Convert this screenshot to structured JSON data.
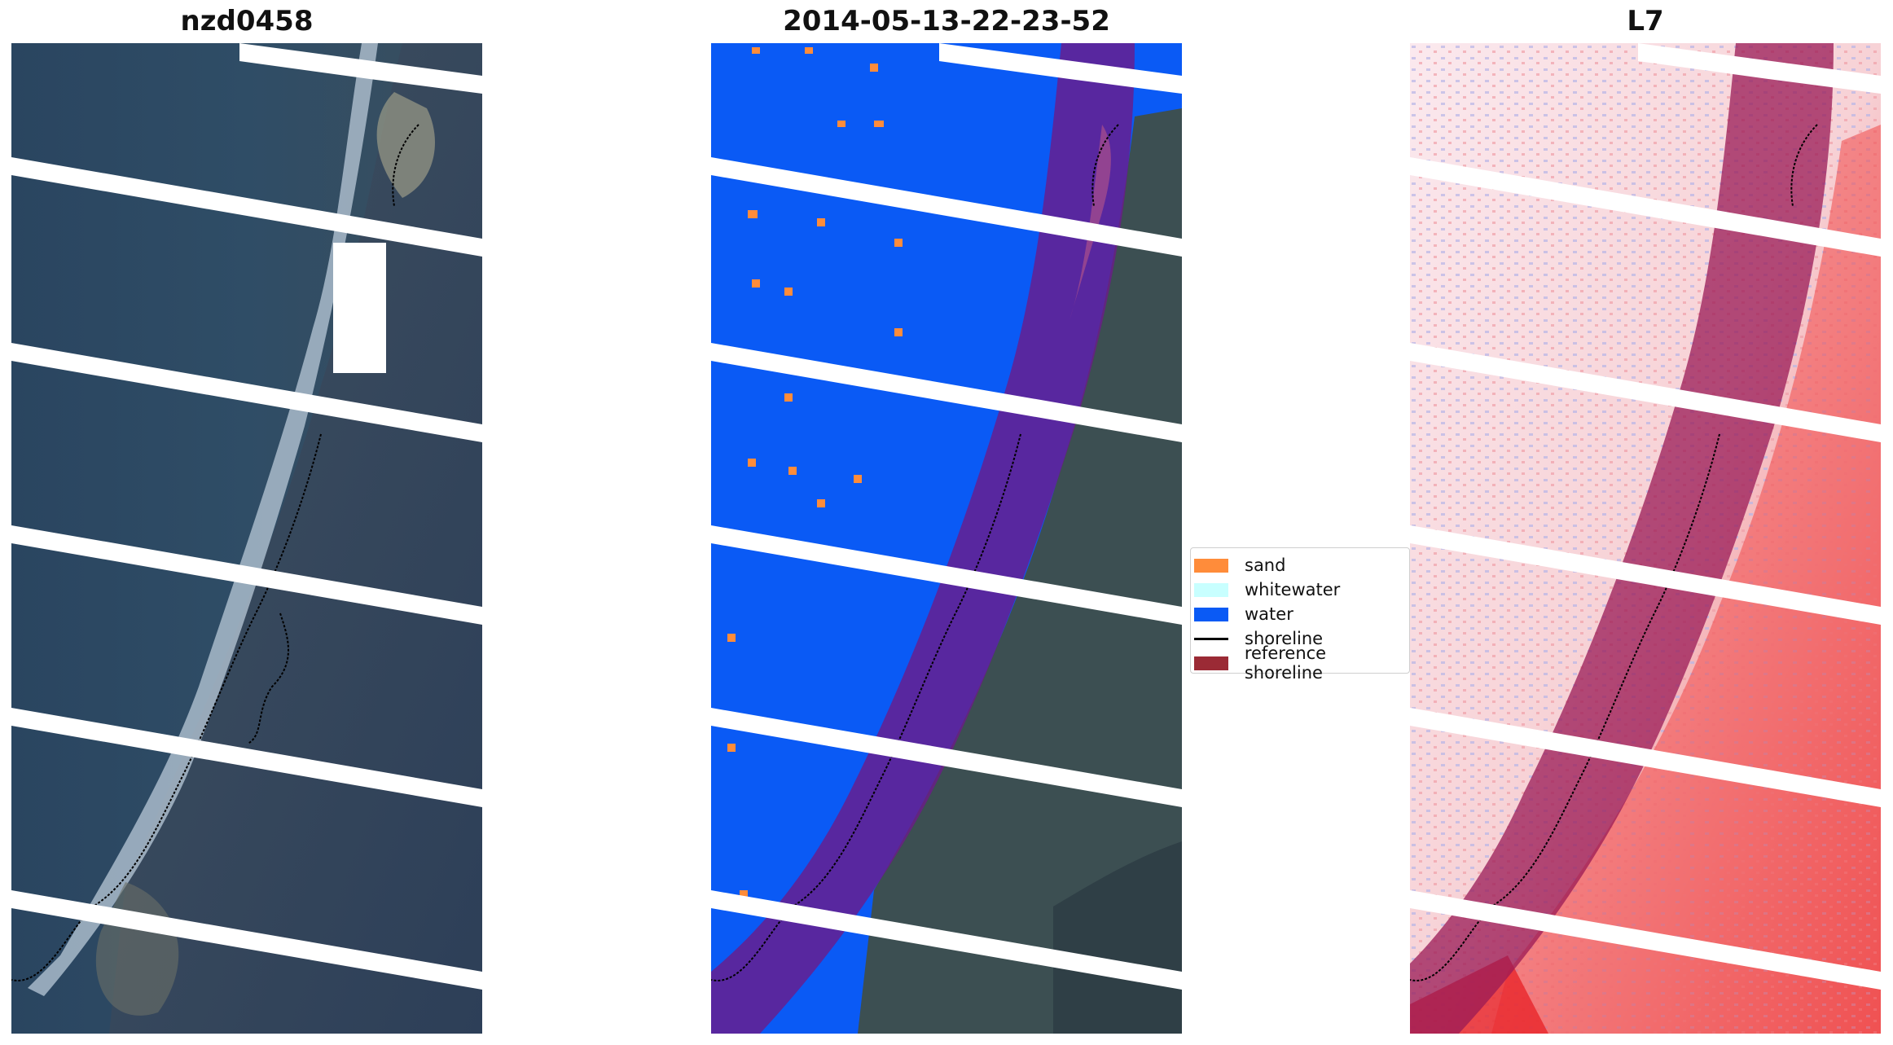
{
  "figure": {
    "panels": [
      {
        "title": "nzd0458"
      },
      {
        "title": "2014-05-13-22-23-52"
      },
      {
        "title": "L7"
      }
    ],
    "legend": {
      "items": [
        {
          "label": "sand",
          "color": "#ff8c3a",
          "kind": "patch"
        },
        {
          "label": "whitewater",
          "color": "#c8ffff",
          "kind": "patch"
        },
        {
          "label": "water",
          "color": "#0a5af5",
          "kind": "patch"
        },
        {
          "label": "shoreline",
          "color": "#000000",
          "kind": "line"
        },
        {
          "label": "reference shoreline",
          "color": "#9b2a35",
          "kind": "patch"
        }
      ]
    },
    "colors": {
      "rgb_sea": "#2c4a63",
      "water_class": "#0a5af5",
      "land_dark": "#3c4f52",
      "reference_buffer": "#7a1560",
      "index_red": "#e8262a",
      "gap_stripes": "#ffffff"
    }
  }
}
